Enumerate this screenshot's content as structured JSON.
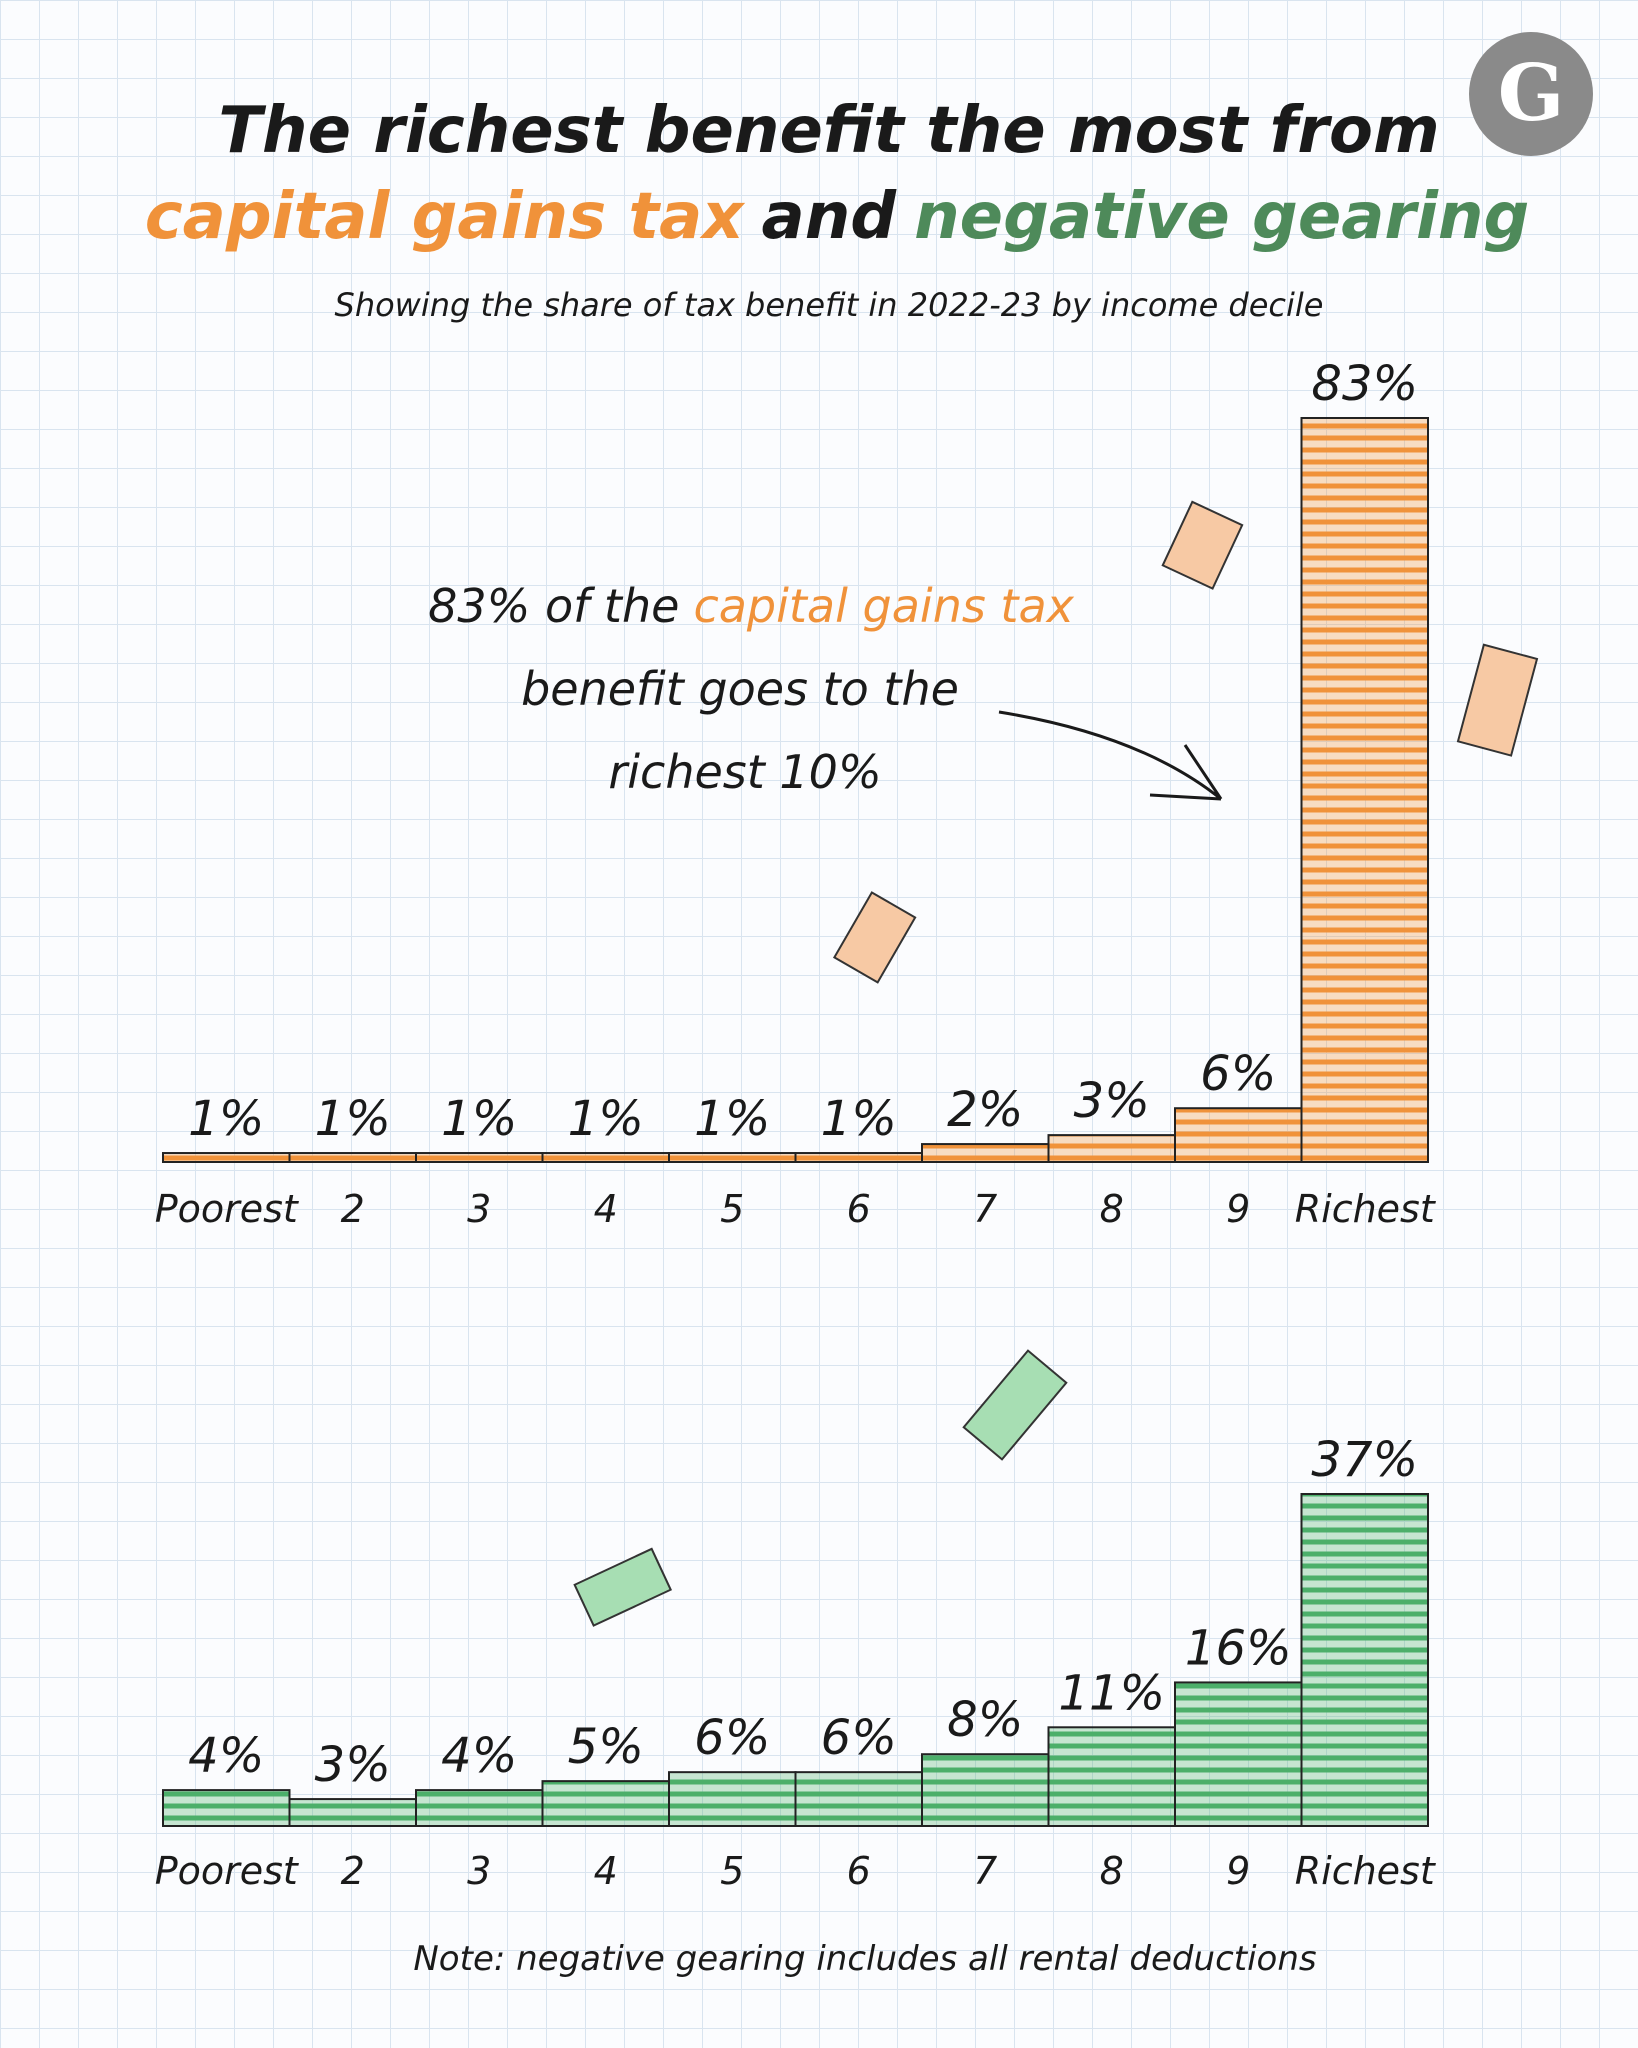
{
  "header": {
    "title_line1": "The richest benefit the most from",
    "title_highlight1": "capital gains tax",
    "title_and": "and",
    "title_highlight2": "negative gearing",
    "subtitle": "Showing the share of tax benefit in 2022-23 by income decile",
    "logo": "G"
  },
  "chart_data": [
    {
      "type": "bar",
      "categories": [
        "Poorest",
        "2",
        "3",
        "4",
        "5",
        "6",
        "7",
        "8",
        "9",
        "Richest"
      ],
      "values": [
        1,
        1,
        1,
        1,
        1,
        1,
        2,
        3,
        6,
        83
      ],
      "value_labels": [
        "1%",
        "1%",
        "1%",
        "1%",
        "1%",
        "1%",
        "2%",
        "3%",
        "6%",
        "83%"
      ],
      "color": "#f0923a",
      "ylim": [
        0,
        83
      ],
      "annotation": {
        "line1": "83% of the",
        "highlight": "capital gains tax",
        "line2": "benefit goes to the",
        "line3": "richest 10%"
      }
    },
    {
      "type": "bar",
      "categories": [
        "Poorest",
        "2",
        "3",
        "4",
        "5",
        "6",
        "7",
        "8",
        "9",
        "Richest"
      ],
      "values": [
        4,
        3,
        4,
        5,
        6,
        6,
        8,
        11,
        16,
        37
      ],
      "value_labels": [
        "4%",
        "3%",
        "4%",
        "5%",
        "6%",
        "6%",
        "8%",
        "11%",
        "16%",
        "37%"
      ],
      "color": "#4caf6a",
      "ylim": [
        0,
        37
      ]
    }
  ],
  "note": "Note: negative gearing includes all rental deductions"
}
